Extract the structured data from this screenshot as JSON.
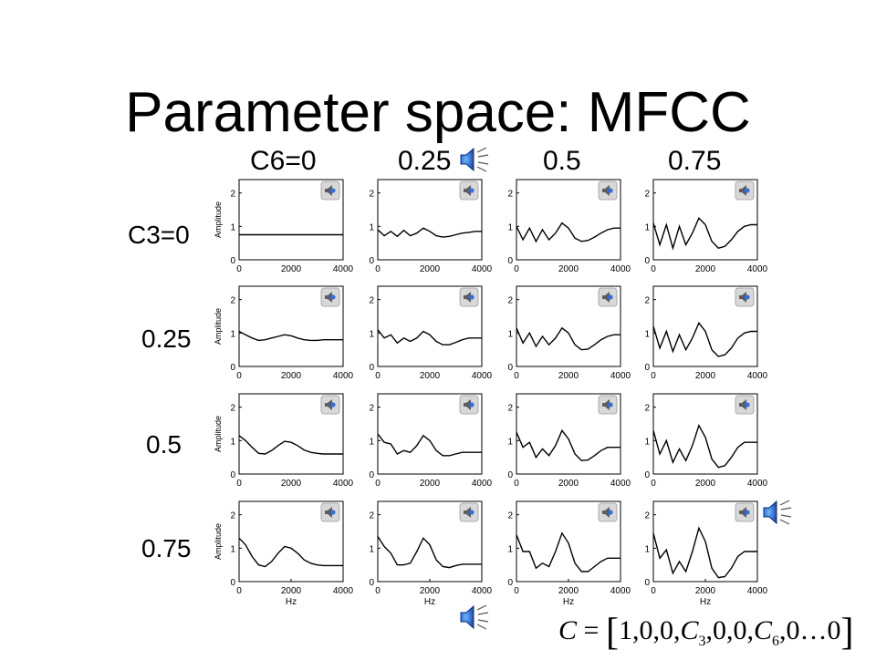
{
  "slide": {
    "title": "Parameter space: MFCC",
    "column_labels": [
      "C6=0",
      "0.25",
      "0.5",
      "0.75"
    ],
    "row_labels": [
      "C3=0",
      "0.25",
      "0.5",
      "0.75"
    ],
    "formula": {
      "lhs": "C",
      "eq": "=",
      "open": "[",
      "part1": "1,0,0,",
      "c3": "C",
      "c3_sub": "3",
      "part2": ",0,0,",
      "c6": "C",
      "c6_sub": "6",
      "part3": ",0…0",
      "close": "]"
    }
  },
  "plot_axes": {
    "xlabel": "Hz",
    "ylabel": "Amplitude",
    "x_ticks": [
      "0",
      "2000",
      "4000"
    ],
    "y_ticks": [
      "0",
      "1",
      "2"
    ],
    "xlim": [
      0,
      4000
    ],
    "ylim": [
      0,
      2.4
    ]
  },
  "icons": {
    "panel_sound": "speaker-icon",
    "large_sound": "speaker-icon"
  },
  "chart_data": [
    {
      "type": "line",
      "row": "C3=0",
      "col": "C6=0",
      "x": [
        0,
        250,
        500,
        750,
        1000,
        1250,
        1500,
        1750,
        2000,
        2250,
        2500,
        2750,
        3000,
        3250,
        3500,
        3750,
        4000
      ],
      "y": [
        0.75,
        0.75,
        0.75,
        0.75,
        0.75,
        0.75,
        0.75,
        0.75,
        0.75,
        0.75,
        0.75,
        0.75,
        0.75,
        0.75,
        0.75,
        0.75,
        0.75
      ]
    },
    {
      "type": "line",
      "row": "C3=0",
      "col": "0.25",
      "x": [
        0,
        250,
        500,
        750,
        1000,
        1250,
        1500,
        1750,
        2000,
        2250,
        2500,
        2750,
        3000,
        3250,
        3500,
        3750,
        4000
      ],
      "y": [
        0.9,
        0.72,
        0.85,
        0.7,
        0.88,
        0.72,
        0.8,
        0.95,
        0.85,
        0.72,
        0.68,
        0.7,
        0.75,
        0.8,
        0.82,
        0.85,
        0.85
      ]
    },
    {
      "type": "line",
      "row": "C3=0",
      "col": "0.5",
      "x": [
        0,
        250,
        500,
        750,
        1000,
        1250,
        1500,
        1750,
        2000,
        2250,
        2500,
        2750,
        3000,
        3250,
        3500,
        3750,
        4000
      ],
      "y": [
        1.0,
        0.6,
        0.95,
        0.55,
        0.9,
        0.6,
        0.8,
        1.1,
        0.95,
        0.65,
        0.55,
        0.58,
        0.68,
        0.8,
        0.9,
        0.95,
        0.95
      ]
    },
    {
      "type": "line",
      "row": "C3=0",
      "col": "0.75",
      "x": [
        0,
        250,
        500,
        750,
        1000,
        1250,
        1500,
        1750,
        2000,
        2250,
        2500,
        2750,
        3000,
        3250,
        3500,
        3750,
        4000
      ],
      "y": [
        1.1,
        0.45,
        1.05,
        0.35,
        1.0,
        0.45,
        0.8,
        1.25,
        1.05,
        0.55,
        0.35,
        0.4,
        0.6,
        0.85,
        1.0,
        1.05,
        1.05
      ]
    },
    {
      "type": "line",
      "row": "0.25",
      "col": "C6=0",
      "x": [
        0,
        250,
        500,
        750,
        1000,
        1250,
        1500,
        1750,
        2000,
        2250,
        2500,
        2750,
        3000,
        3250,
        3500,
        3750,
        4000
      ],
      "y": [
        1.05,
        0.95,
        0.85,
        0.78,
        0.8,
        0.85,
        0.9,
        0.95,
        0.92,
        0.85,
        0.8,
        0.78,
        0.78,
        0.8,
        0.8,
        0.8,
        0.8
      ]
    },
    {
      "type": "line",
      "row": "0.25",
      "col": "0.25",
      "x": [
        0,
        250,
        500,
        750,
        1000,
        1250,
        1500,
        1750,
        2000,
        2250,
        2500,
        2750,
        3000,
        3250,
        3500,
        3750,
        4000
      ],
      "y": [
        1.1,
        0.85,
        0.95,
        0.7,
        0.85,
        0.75,
        0.85,
        1.05,
        0.95,
        0.75,
        0.65,
        0.65,
        0.72,
        0.8,
        0.85,
        0.85,
        0.85
      ]
    },
    {
      "type": "line",
      "row": "0.25",
      "col": "0.5",
      "x": [
        0,
        250,
        500,
        750,
        1000,
        1250,
        1500,
        1750,
        2000,
        2250,
        2500,
        2750,
        3000,
        3250,
        3500,
        3750,
        4000
      ],
      "y": [
        1.15,
        0.7,
        1.0,
        0.6,
        0.9,
        0.65,
        0.85,
        1.15,
        1.0,
        0.65,
        0.5,
        0.52,
        0.65,
        0.8,
        0.9,
        0.95,
        0.95
      ]
    },
    {
      "type": "line",
      "row": "0.25",
      "col": "0.75",
      "x": [
        0,
        250,
        500,
        750,
        1000,
        1250,
        1500,
        1750,
        2000,
        2250,
        2500,
        2750,
        3000,
        3250,
        3500,
        3750,
        4000
      ],
      "y": [
        1.2,
        0.55,
        1.05,
        0.45,
        0.95,
        0.5,
        0.85,
        1.3,
        1.05,
        0.5,
        0.3,
        0.35,
        0.55,
        0.85,
        1.0,
        1.05,
        1.05
      ]
    },
    {
      "type": "line",
      "row": "0.5",
      "col": "C6=0",
      "x": [
        0,
        250,
        500,
        750,
        1000,
        1250,
        1500,
        1750,
        2000,
        2250,
        2500,
        2750,
        3000,
        3250,
        3500,
        3750,
        4000
      ],
      "y": [
        1.15,
        1.0,
        0.8,
        0.62,
        0.6,
        0.7,
        0.85,
        0.98,
        0.95,
        0.85,
        0.72,
        0.65,
        0.62,
        0.6,
        0.6,
        0.6,
        0.6
      ]
    },
    {
      "type": "line",
      "row": "0.5",
      "col": "0.25",
      "x": [
        0,
        250,
        500,
        750,
        1000,
        1250,
        1500,
        1750,
        2000,
        2250,
        2500,
        2750,
        3000,
        3250,
        3500,
        3750,
        4000
      ],
      "y": [
        1.2,
        0.95,
        0.9,
        0.6,
        0.7,
        0.65,
        0.85,
        1.15,
        1.0,
        0.7,
        0.55,
        0.55,
        0.6,
        0.65,
        0.65,
        0.65,
        0.65
      ]
    },
    {
      "type": "line",
      "row": "0.5",
      "col": "0.5",
      "x": [
        0,
        250,
        500,
        750,
        1000,
        1250,
        1500,
        1750,
        2000,
        2250,
        2500,
        2750,
        3000,
        3250,
        3500,
        3750,
        4000
      ],
      "y": [
        1.25,
        0.8,
        0.95,
        0.5,
        0.75,
        0.55,
        0.85,
        1.3,
        1.05,
        0.6,
        0.4,
        0.42,
        0.55,
        0.7,
        0.8,
        0.8,
        0.8
      ]
    },
    {
      "type": "line",
      "row": "0.5",
      "col": "0.75",
      "x": [
        0,
        250,
        500,
        750,
        1000,
        1250,
        1500,
        1750,
        2000,
        2250,
        2500,
        2750,
        3000,
        3250,
        3500,
        3750,
        4000
      ],
      "y": [
        1.3,
        0.6,
        1.0,
        0.35,
        0.75,
        0.4,
        0.85,
        1.45,
        1.1,
        0.45,
        0.2,
        0.25,
        0.5,
        0.8,
        0.95,
        0.95,
        0.95
      ]
    },
    {
      "type": "line",
      "row": "0.75",
      "col": "C6=0",
      "x": [
        0,
        250,
        500,
        750,
        1000,
        1250,
        1500,
        1750,
        2000,
        2250,
        2500,
        2750,
        3000,
        3250,
        3500,
        3750,
        4000
      ],
      "y": [
        1.3,
        1.1,
        0.75,
        0.5,
        0.45,
        0.6,
        0.85,
        1.05,
        1.0,
        0.85,
        0.65,
        0.55,
        0.5,
        0.48,
        0.48,
        0.48,
        0.48
      ]
    },
    {
      "type": "line",
      "row": "0.75",
      "col": "0.25",
      "x": [
        0,
        250,
        500,
        750,
        1000,
        1250,
        1500,
        1750,
        2000,
        2250,
        2500,
        2750,
        3000,
        3250,
        3500,
        3750,
        4000
      ],
      "y": [
        1.35,
        1.05,
        0.85,
        0.5,
        0.5,
        0.55,
        0.9,
        1.3,
        1.1,
        0.65,
        0.45,
        0.42,
        0.48,
        0.52,
        0.52,
        0.52,
        0.52
      ]
    },
    {
      "type": "line",
      "row": "0.75",
      "col": "0.5",
      "x": [
        0,
        250,
        500,
        750,
        1000,
        1250,
        1500,
        1750,
        2000,
        2250,
        2500,
        2750,
        3000,
        3250,
        3500,
        3750,
        4000
      ],
      "y": [
        1.4,
        0.9,
        0.9,
        0.4,
        0.55,
        0.45,
        0.9,
        1.45,
        1.15,
        0.55,
        0.3,
        0.3,
        0.45,
        0.6,
        0.7,
        0.7,
        0.7
      ]
    },
    {
      "type": "line",
      "row": "0.75",
      "col": "0.75",
      "x": [
        0,
        250,
        500,
        750,
        1000,
        1250,
        1500,
        1750,
        2000,
        2250,
        2500,
        2750,
        3000,
        3250,
        3500,
        3750,
        4000
      ],
      "y": [
        1.45,
        0.7,
        0.95,
        0.25,
        0.6,
        0.3,
        0.9,
        1.6,
        1.2,
        0.4,
        0.12,
        0.15,
        0.4,
        0.75,
        0.9,
        0.9,
        0.9
      ]
    }
  ]
}
